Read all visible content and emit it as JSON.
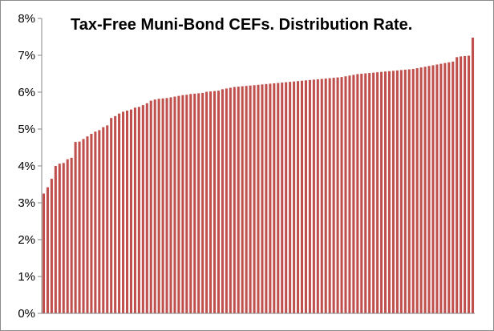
{
  "chart_data": {
    "type": "bar",
    "title": "Tax-Free Muni-Bond CEFs. Distribution Rate.",
    "xlabel": "",
    "ylabel": "",
    "ylim": [
      0,
      8
    ],
    "yticks": [
      "0%",
      "1%",
      "2%",
      "3%",
      "4%",
      "5%",
      "6%",
      "7%",
      "8%"
    ],
    "grid": false,
    "legend": "none",
    "bar_color": "#c0504d",
    "values": [
      3.25,
      3.42,
      3.65,
      4.0,
      4.06,
      4.08,
      4.18,
      4.22,
      4.65,
      4.66,
      4.73,
      4.8,
      4.87,
      4.93,
      4.97,
      5.05,
      5.1,
      5.3,
      5.35,
      5.42,
      5.47,
      5.5,
      5.53,
      5.58,
      5.6,
      5.65,
      5.7,
      5.77,
      5.8,
      5.82,
      5.83,
      5.84,
      5.86,
      5.88,
      5.9,
      5.92,
      5.93,
      5.95,
      5.96,
      5.97,
      5.98,
      6.01,
      6.02,
      6.03,
      6.04,
      6.08,
      6.1,
      6.12,
      6.14,
      6.15,
      6.16,
      6.17,
      6.18,
      6.19,
      6.2,
      6.21,
      6.22,
      6.23,
      6.24,
      6.25,
      6.26,
      6.27,
      6.28,
      6.29,
      6.3,
      6.31,
      6.32,
      6.33,
      6.34,
      6.35,
      6.36,
      6.37,
      6.38,
      6.39,
      6.4,
      6.41,
      6.43,
      6.45,
      6.47,
      6.49,
      6.5,
      6.51,
      6.52,
      6.53,
      6.54,
      6.55,
      6.56,
      6.57,
      6.58,
      6.59,
      6.6,
      6.61,
      6.62,
      6.63,
      6.65,
      6.67,
      6.69,
      6.71,
      6.73,
      6.75,
      6.77,
      6.79,
      6.81,
      6.83,
      6.95,
      6.97,
      6.98,
      6.99,
      7.48
    ]
  }
}
